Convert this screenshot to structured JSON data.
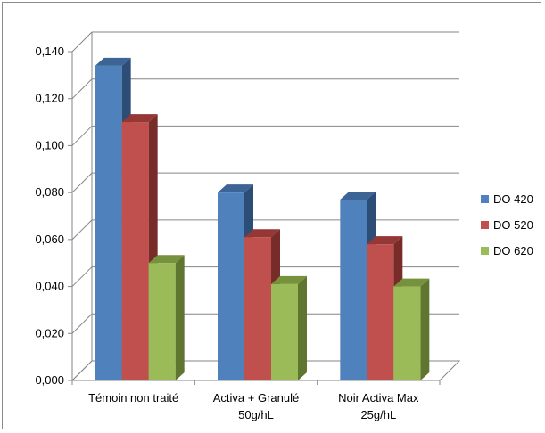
{
  "chart_data": {
    "type": "bar",
    "categories": [
      "Témoin non traité",
      "Activa + Granulé\n50g/hL",
      "Noir Activa Max\n25g/hL"
    ],
    "series": [
      {
        "name": "DO 420",
        "values": [
          0.134,
          0.08,
          0.077
        ],
        "color": "#4f81bd",
        "top": "#3c6494",
        "side": "#2c4d75"
      },
      {
        "name": "DO 520",
        "values": [
          0.11,
          0.061,
          0.058
        ],
        "color": "#c0504d",
        "top": "#953735",
        "side": "#772c2a"
      },
      {
        "name": "DO 620",
        "values": [
          0.05,
          0.041,
          0.04
        ],
        "color": "#9bbb59",
        "top": "#76923c",
        "side": "#5f7530"
      }
    ],
    "yticks": [
      "0,000",
      "0,020",
      "0,040",
      "0,060",
      "0,080",
      "0,100",
      "0,120",
      "0,140"
    ],
    "ylim": [
      0,
      0.14
    ],
    "grid": true,
    "legend": "right",
    "title": "",
    "xlabel": "",
    "ylabel": ""
  }
}
